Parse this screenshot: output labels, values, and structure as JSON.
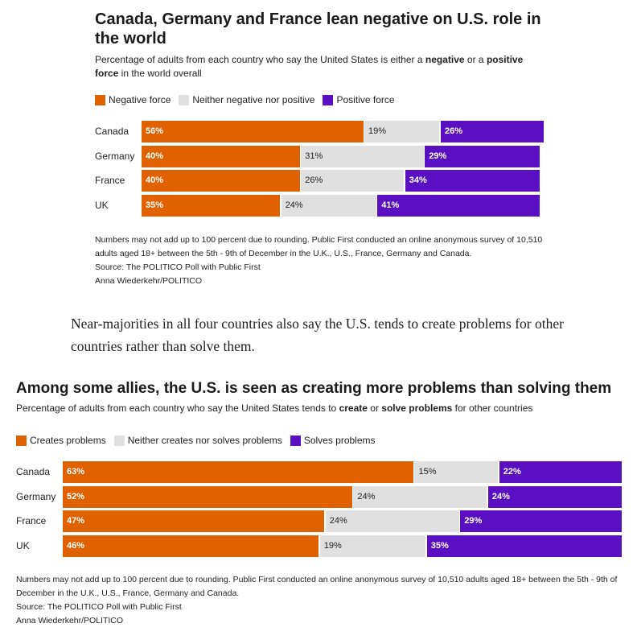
{
  "colors": {
    "negative": "#df6100",
    "neutral": "#e0e0e0",
    "positive": "#5a10c2"
  },
  "paragraph": "Near-majorities in all four countries also say the U.S. tends to create problems for other countries rather than solve them.",
  "chart_data": [
    {
      "type": "bar",
      "stacked": true,
      "orientation": "horizontal",
      "title": "Canada, Germany and France lean negative on U.S. role in the world",
      "subtitle_parts": [
        "Percentage of adults from each country who say the United States is either a ",
        "negative",
        " or a ",
        "positive force",
        " in the world overall"
      ],
      "categories": [
        "Canada",
        "Germany",
        "France",
        "UK"
      ],
      "series": [
        {
          "name": "Negative force",
          "values": [
            56,
            40,
            40,
            35
          ],
          "labels": [
            "56%",
            "40%",
            "40%",
            "35%"
          ]
        },
        {
          "name": "Neither negative nor positive",
          "values": [
            19,
            31,
            26,
            24
          ],
          "labels": [
            "19%",
            "31%",
            "26%",
            "24%"
          ]
        },
        {
          "name": "Positive force",
          "values": [
            26,
            29,
            34,
            41
          ],
          "labels": [
            "26%",
            "29%",
            "34%",
            "41%"
          ]
        }
      ],
      "legend": "top-left",
      "notes": [
        "Numbers may not add up to 100 percent due to rounding. Public First conducted an online anonymous survey of 10,510 adults aged 18+ between the 5th - 9th of December in the U.K., U.S., France, Germany and Canada.",
        "Source: The POLITICO Poll with Public First",
        "Anna Wiederkehr/POLITICO"
      ]
    },
    {
      "type": "bar",
      "stacked": true,
      "orientation": "horizontal",
      "title": "Among some allies, the U.S. is seen as creating more problems than solving them",
      "subtitle_parts": [
        "Percentage of adults from each country who say the United States tends to ",
        "create",
        " or ",
        "solve problems",
        " for other countries"
      ],
      "categories": [
        "Canada",
        "Germany",
        "France",
        "UK"
      ],
      "series": [
        {
          "name": "Creates problems",
          "values": [
            63,
            52,
            47,
            46
          ],
          "labels": [
            "63%",
            "52%",
            "47%",
            "46%"
          ]
        },
        {
          "name": "Neither creates nor solves problems",
          "values": [
            15,
            24,
            24,
            19
          ],
          "labels": [
            "15%",
            "24%",
            "24%",
            "19%"
          ]
        },
        {
          "name": "Solves problems",
          "values": [
            22,
            24,
            29,
            35
          ],
          "labels": [
            "22%",
            "24%",
            "29%",
            "35%"
          ]
        }
      ],
      "legend": "top-left",
      "notes": [
        "Numbers may not add up to 100 percent due to rounding. Public First conducted an online anonymous survey of 10,510 adults aged 18+ between the 5th - 9th of December in the U.K., U.S., France, Germany and Canada.",
        "Source: The POLITICO Poll with Public First",
        "Anna Wiederkehr/POLITICO"
      ]
    }
  ]
}
